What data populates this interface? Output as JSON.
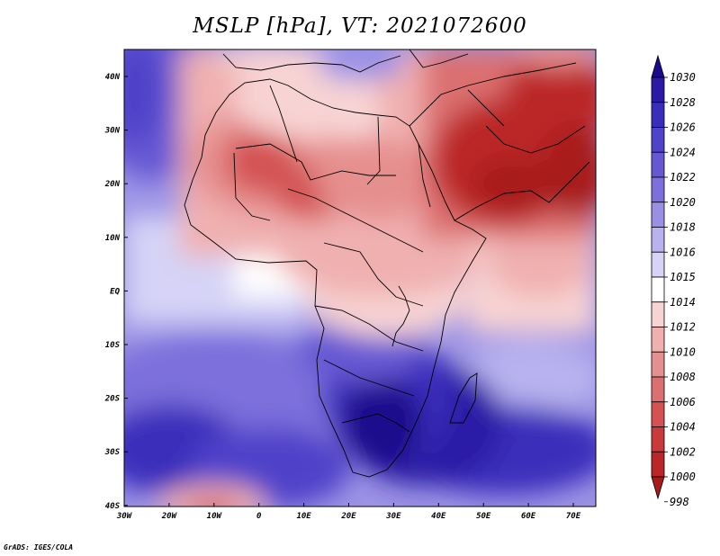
{
  "title": "MSLP [hPa], VT: 2021072600",
  "credit": "GrADS: IGES/COLA",
  "lat_labels": [
    "40N",
    "30N",
    "20N",
    "10N",
    "EQ",
    "10S",
    "20S",
    "30S",
    "40S"
  ],
  "lon_labels": [
    "30W",
    "20W",
    "10W",
    "0",
    "10E",
    "20E",
    "30E",
    "40E",
    "50E",
    "60E",
    "70E"
  ],
  "colorbar": {
    "levels": [
      "1030",
      "1028",
      "1026",
      "1024",
      "1022",
      "1020",
      "1018",
      "1016",
      "1015",
      "1014",
      "1012",
      "1010",
      "1008",
      "1006",
      "1004",
      "1002",
      "1000",
      "998"
    ],
    "colors": [
      "#1a0a8c",
      "#2a1aa6",
      "#3b2dbb",
      "#4f43c9",
      "#6658d3",
      "#7d70dc",
      "#9990e6",
      "#b8b2ef",
      "#d6d3f6",
      "#ffffff",
      "#f8d3d3",
      "#f0b0b0",
      "#e68f8f",
      "#dc6f6f",
      "#d45252",
      "#c93a3a",
      "#bb2626",
      "#a81a1a"
    ]
  }
}
